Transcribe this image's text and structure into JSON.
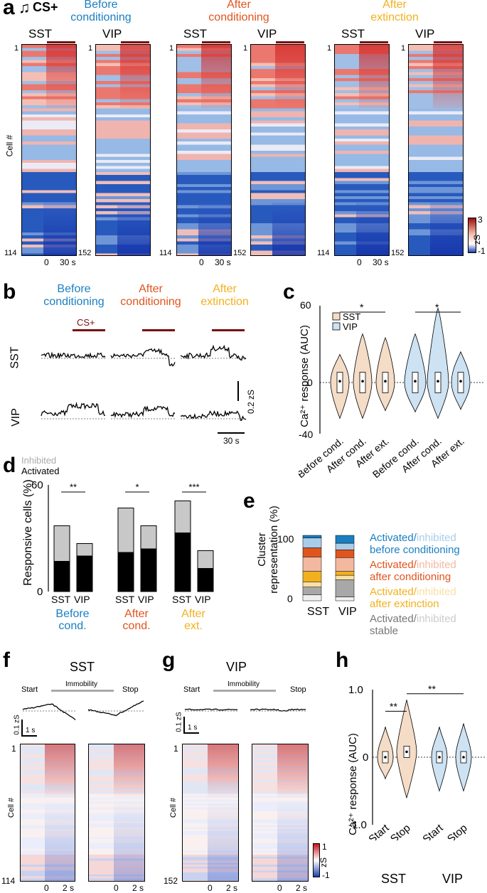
{
  "colors": {
    "before": "#1a7fc1",
    "after_cond": "#e0541e",
    "after_ext": "#f2b01e",
    "dark_red": "#7a0d0d",
    "sst_fill": "#f5dcc6",
    "vip_fill": "#cde2f2",
    "gray_light": "#c8c8c8"
  },
  "panel_a": {
    "label": "a",
    "cs_label": "CS+",
    "conditions": [
      "Before\nconditioning",
      "After\nconditioning",
      "After\nextinction"
    ],
    "heatmaps": [
      {
        "title": "SST",
        "top": "1",
        "bottom": "114"
      },
      {
        "title": "VIP",
        "top": "1",
        "bottom": "152"
      },
      {
        "title": "SST",
        "top": "1",
        "bottom": "114"
      },
      {
        "title": "VIP",
        "top": "1",
        "bottom": "152"
      },
      {
        "title": "SST",
        "top": "1",
        "bottom": "114"
      },
      {
        "title": "VIP",
        "top": "1",
        "bottom": "152"
      }
    ],
    "ylabel": "Cell #",
    "x0": "0",
    "x30": "30 s",
    "colorbar": {
      "max": "3",
      "min": "-1",
      "unit": "zS"
    }
  },
  "panel_b": {
    "label": "b",
    "conditions": [
      "Before\nconditioning",
      "After\nconditioning",
      "After\nextinction"
    ],
    "cs": "CS+",
    "rows": [
      "SST",
      "VIP"
    ],
    "scale_y": "0.2 zS",
    "scale_x": "30 s"
  },
  "panel_c": {
    "label": "c",
    "ylabel": "Ca²⁺ response (AUC)",
    "yticks": [
      "60",
      "0",
      "-40"
    ],
    "legend": [
      "SST",
      "VIP"
    ],
    "xticks": [
      "Before cond.",
      "After cond.",
      "After ext.",
      "Before cond.",
      "After cond.",
      "After ext."
    ],
    "sig": [
      "*",
      "*"
    ]
  },
  "panel_d": {
    "label": "d",
    "legend_inhibited": "Inhibited",
    "legend_activated": "Activated",
    "ylabel": "Responsive cells (%)",
    "yticks": [
      "60",
      "0"
    ],
    "groups": [
      {
        "name": "Before\ncond.",
        "sig": "**",
        "bars": [
          {
            "cell": "SST",
            "activated": 17,
            "inhibited": 20
          },
          {
            "cell": "VIP",
            "activated": 20,
            "inhibited": 7
          }
        ]
      },
      {
        "name": "After\ncond.",
        "sig": "*",
        "bars": [
          {
            "cell": "SST",
            "activated": 22,
            "inhibited": 25
          },
          {
            "cell": "VIP",
            "activated": 24,
            "inhibited": 13
          }
        ]
      },
      {
        "name": "After\next.",
        "sig": "***",
        "bars": [
          {
            "cell": "SST",
            "activated": 33,
            "inhibited": 18
          },
          {
            "cell": "VIP",
            "activated": 13,
            "inhibited": 10
          }
        ]
      }
    ]
  },
  "panel_e": {
    "label": "e",
    "ylabel": "Cluster\nrepresentation (%)",
    "yticks": [
      "100",
      "0"
    ],
    "xlabels": [
      "SST",
      "VIP"
    ],
    "legend": [
      {
        "act": "Activated/",
        "inh": "inhibited",
        "rest": "before conditioning"
      },
      {
        "act": "Activated/",
        "inh": "inhibited",
        "rest": "after conditioning"
      },
      {
        "act": "Activated/",
        "inh": "inhibited",
        "rest": "after extinction"
      },
      {
        "act": "Activated/",
        "inh": "inhibited",
        "rest": "stable"
      }
    ],
    "stacks": {
      "SST": [
        9,
        12,
        8,
        16,
        22,
        14,
        15,
        4
      ],
      "VIP": [
        6,
        26,
        7,
        6,
        21,
        12,
        10,
        12
      ]
    }
  },
  "panel_f": {
    "label": "f",
    "title": "SST",
    "start": "Start",
    "immobility": "Immobility",
    "stop": "Stop",
    "scale_y": "0.1 zS",
    "scale_x": "1 s",
    "ylabel": "Cell #",
    "top": "1",
    "bottom": "114",
    "x0": "0",
    "x2": "2 s"
  },
  "panel_g": {
    "label": "g",
    "title": "VIP",
    "start": "Start",
    "immobility": "Immobility",
    "stop": "Stop",
    "scale_y": "0.1 zS",
    "scale_x": "1 s",
    "ylabel": "Cell #",
    "top": "1",
    "bottom": "152",
    "x0": "0",
    "x2": "2 s",
    "colorbar": {
      "max": "1",
      "min": "-1",
      "unit": "zS"
    }
  },
  "panel_h": {
    "label": "h",
    "ylabel": "Ca²⁺ response (AUC)",
    "yticks": [
      "1.0",
      "0",
      "-1.0"
    ],
    "xticks": [
      "Start",
      "Stop",
      "Start",
      "Stop"
    ],
    "groups": [
      "SST",
      "VIP"
    ],
    "sig": [
      "**",
      "**"
    ]
  }
}
